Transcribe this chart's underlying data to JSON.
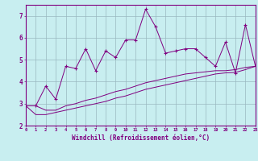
{
  "xlabel": "Windchill (Refroidissement éolien,°C)",
  "xlim": [
    0,
    23
  ],
  "ylim": [
    2,
    7.5
  ],
  "yticks": [
    2,
    3,
    4,
    5,
    6,
    7
  ],
  "xticks": [
    0,
    1,
    2,
    3,
    4,
    5,
    6,
    7,
    8,
    9,
    10,
    11,
    12,
    13,
    14,
    15,
    16,
    17,
    18,
    19,
    20,
    21,
    22,
    23
  ],
  "background_color": "#c8eef0",
  "line_color": "#800080",
  "grid_color": "#9ab8c0",
  "x_data": [
    0,
    1,
    2,
    3,
    4,
    5,
    6,
    7,
    8,
    9,
    10,
    11,
    12,
    13,
    14,
    15,
    16,
    17,
    18,
    19,
    20,
    21,
    22,
    23
  ],
  "y_main": [
    2.9,
    2.9,
    3.8,
    3.2,
    4.7,
    4.6,
    5.5,
    4.5,
    5.4,
    5.1,
    5.9,
    5.9,
    7.3,
    6.5,
    5.3,
    5.4,
    5.5,
    5.5,
    5.1,
    4.7,
    5.8,
    4.4,
    6.6,
    4.7
  ],
  "y_line1": [
    2.9,
    2.9,
    2.7,
    2.7,
    2.9,
    3.0,
    3.15,
    3.25,
    3.4,
    3.55,
    3.65,
    3.8,
    3.95,
    4.05,
    4.15,
    4.25,
    4.35,
    4.4,
    4.45,
    4.5,
    4.5,
    4.55,
    4.65,
    4.7
  ],
  "y_line2": [
    2.9,
    2.5,
    2.5,
    2.6,
    2.7,
    2.8,
    2.9,
    3.0,
    3.1,
    3.25,
    3.35,
    3.5,
    3.65,
    3.75,
    3.85,
    3.95,
    4.05,
    4.15,
    4.25,
    4.35,
    4.4,
    4.42,
    4.55,
    4.7
  ]
}
